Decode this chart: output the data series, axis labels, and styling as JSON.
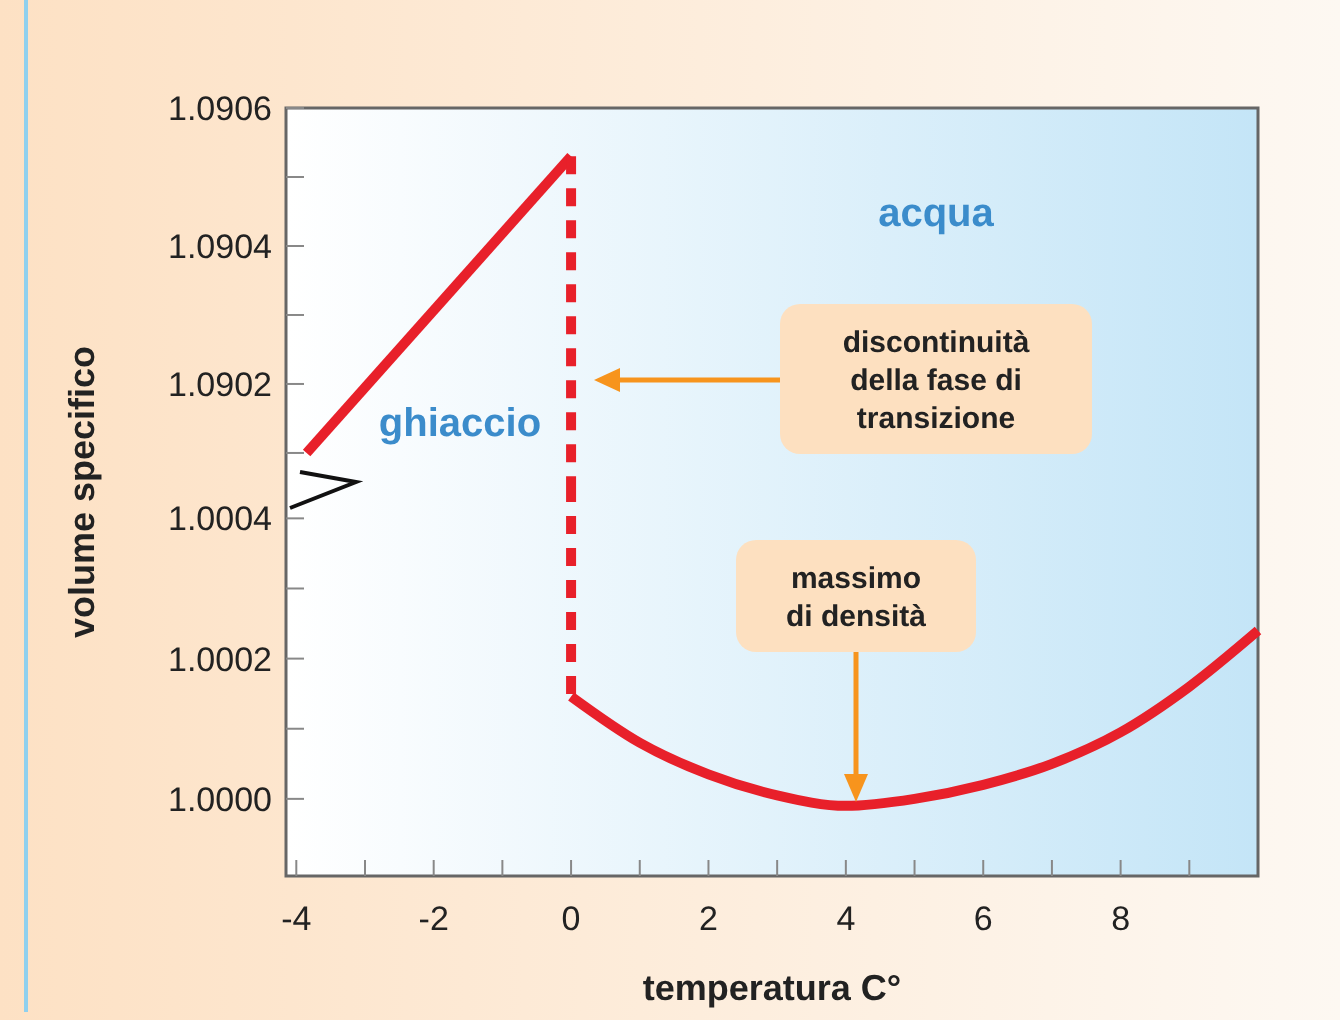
{
  "chart_data": [
    {
      "type": "line",
      "ylabel": "volume specifico",
      "tick_labels": "y",
      "xlim": [
        -4.15,
        10
      ],
      "ylim": [
        1.090055,
        1.0906
      ],
      "yticks": [
        {
          "value": 1.0901,
          "label": null
        },
        1.0902,
        {
          "value": 1.0903,
          "label": null
        },
        1.0904,
        {
          "value": 1.0905,
          "label": null
        },
        1.0906
      ],
      "series": [
        {
          "color": "#e8202a",
          "x": [
            -3.85,
            0
          ],
          "values": [
            1.0901,
            1.09053
          ],
          "line_style": "solid"
        },
        {
          "color": "#e8202a",
          "x": [
            0,
            0
          ],
          "values": [
            1.09053,
            1.090055
          ],
          "line_style": "dashed"
        }
      ],
      "annotations": [
        "acqua",
        "ghiaccio",
        "discontinuità della fase di transizione"
      ]
    },
    {
      "type": "line",
      "xlabel": "temperatura C°",
      "xlim": [
        -4.15,
        10
      ],
      "xticks": [
        -4,
        {
          "value": -3,
          "label": null
        },
        -2,
        {
          "value": -1,
          "label": null
        },
        0,
        {
          "value": 1,
          "label": null
        },
        2,
        {
          "value": 3,
          "label": null
        },
        4,
        {
          "value": 5,
          "label": null
        },
        6,
        {
          "value": 7,
          "label": null
        },
        8,
        {
          "value": 9,
          "label": null
        }
      ],
      "ylim": [
        0.99989,
        1.000449
      ],
      "yticks": [
        {
          "value": 1.0,
          "label": "1.0000"
        },
        {
          "value": 1.0001,
          "label": null
        },
        1.0002,
        {
          "value": 1.0003,
          "label": null
        },
        1.0004
      ],
      "series": [
        {
          "color": "#e8202a",
          "x": [
            0,
            0
          ],
          "values": [
            1.000449,
            1.000146
          ],
          "line_style": "dashed"
        },
        {
          "color": "#e8202a",
          "x": [
            0,
            1,
            2,
            3,
            4,
            5,
            6,
            7,
            8,
            9,
            10
          ],
          "values": [
            1.000146,
            1.00008,
            1.000035,
            1.000005,
            0.99999,
            1.0,
            1.00002,
            1.00005,
            1.000095,
            1.00016,
            1.00024
          ],
          "line_style": "solid"
        }
      ],
      "annotations": [
        "massimo di densità"
      ]
    }
  ]
}
